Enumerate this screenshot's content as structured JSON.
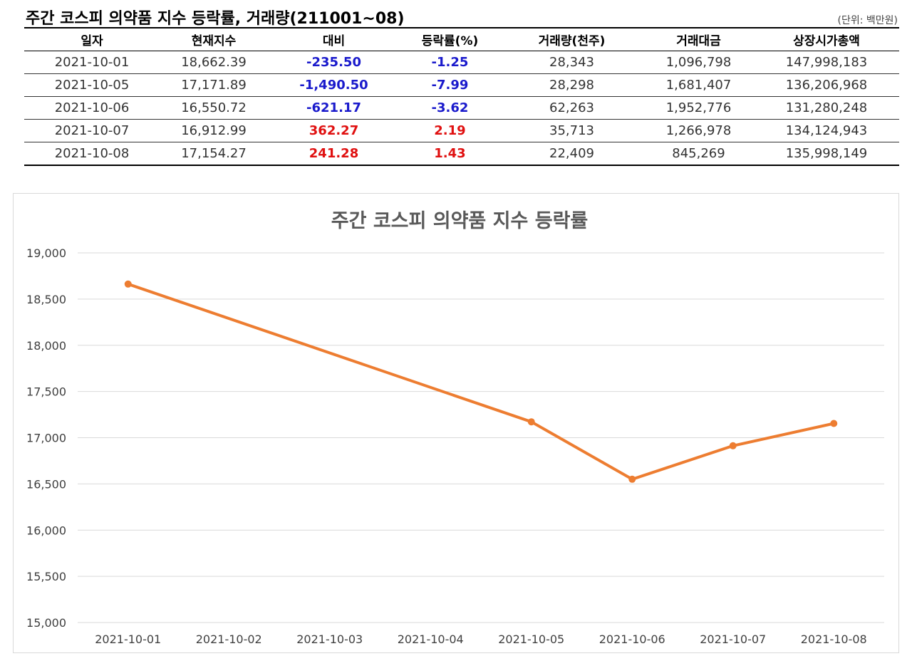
{
  "table": {
    "title": "주간 코스피 의약품 지수 등락률, 거래량(211001~08)",
    "unit": "(단위: 백만원)",
    "columns": [
      "일자",
      "현재지수",
      "대비",
      "등락률(%)",
      "거래량(천주)",
      "거래대금",
      "상장시가총액"
    ],
    "rows": [
      {
        "date": "2021-10-01",
        "index": "18,662.39",
        "change": "-235.50",
        "rate": "-1.25",
        "volume": "28,343",
        "amount": "1,096,798",
        "market_cap": "147,998,183",
        "direction": "down"
      },
      {
        "date": "2021-10-05",
        "index": "17,171.89",
        "change": "-1,490.50",
        "rate": "-7.99",
        "volume": "28,298",
        "amount": "1,681,407",
        "market_cap": "136,206,968",
        "direction": "down"
      },
      {
        "date": "2021-10-06",
        "index": "16,550.72",
        "change": "-621.17",
        "rate": "-3.62",
        "volume": "62,263",
        "amount": "1,952,776",
        "market_cap": "131,280,248",
        "direction": "down"
      },
      {
        "date": "2021-10-07",
        "index": "16,912.99",
        "change": "362.27",
        "rate": "2.19",
        "volume": "35,713",
        "amount": "1,266,978",
        "market_cap": "134,124,943",
        "direction": "up"
      },
      {
        "date": "2021-10-08",
        "index": "17,154.27",
        "change": "241.28",
        "rate": "1.43",
        "volume": "22,409",
        "amount": "845,269",
        "market_cap": "135,998,149",
        "direction": "up"
      }
    ],
    "colors": {
      "down": "#1a1acc",
      "up": "#e01010"
    }
  },
  "chart_data": {
    "type": "line",
    "title": "주간 코스피 의약품 지수 등락률",
    "categories": [
      "2021-10-01",
      "2021-10-02",
      "2021-10-03",
      "2021-10-04",
      "2021-10-05",
      "2021-10-06",
      "2021-10-07",
      "2021-10-08"
    ],
    "series": [
      {
        "values": [
          18662.39,
          null,
          null,
          null,
          17171.89,
          16550.72,
          16912.99,
          17154.27
        ],
        "color": "#ed7d31"
      }
    ],
    "ylim": [
      15000,
      19000
    ],
    "yticks": [
      15000,
      15500,
      16000,
      16500,
      17000,
      17500,
      18000,
      18500,
      19000
    ],
    "ytick_labels": [
      "15,000",
      "15,500",
      "16,000",
      "16,500",
      "17,000",
      "17,500",
      "18,000",
      "18,500",
      "19,000"
    ],
    "grid": true,
    "legend": "none",
    "xlabel": "",
    "ylabel": ""
  }
}
